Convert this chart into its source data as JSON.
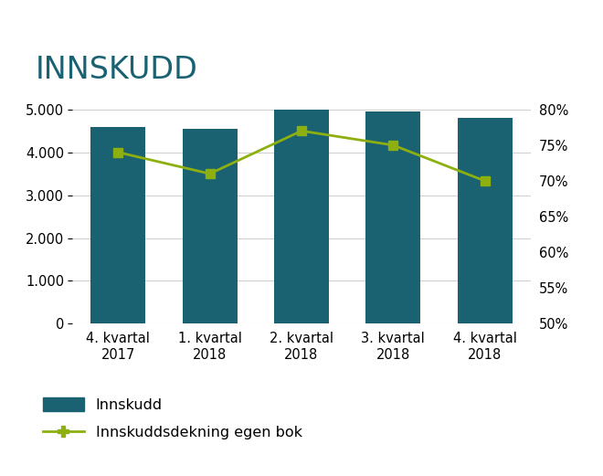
{
  "title": "INNSKUDD",
  "categories": [
    "4. kvartal\n2017",
    "1. kvartal\n2018",
    "2. kvartal\n2018",
    "3. kvartal\n2018",
    "4. kvartal\n2018"
  ],
  "bar_values": [
    4600,
    4550,
    5000,
    4950,
    4800
  ],
  "bar_color": "#1a6272",
  "line_values": [
    74.0,
    71.0,
    77.0,
    75.0,
    70.0
  ],
  "line_color": "#8db010",
  "line_marker": "s",
  "ylim_left": [
    0,
    5556
  ],
  "ylim_right": [
    50,
    83.33
  ],
  "yticks_left": [
    0,
    1000,
    2000,
    3000,
    4000,
    5000
  ],
  "yticks_right": [
    50,
    55,
    60,
    65,
    70,
    75,
    80
  ],
  "ytick_labels_left": [
    "0",
    "1.000",
    "2.000",
    "3.000",
    "4.000",
    "5.000"
  ],
  "ytick_labels_right": [
    "50%",
    "55%",
    "60%",
    "65%",
    "70%",
    "75%",
    "80%"
  ],
  "legend_bar_label": "Innskudd",
  "legend_line_label": "Innskuddsdekning egen bok",
  "title_fontsize": 24,
  "title_color": "#1a6272",
  "background_color": "#ffffff",
  "tick_fontsize": 10.5,
  "legend_fontsize": 11.5,
  "grid_color": "#d0d0d0"
}
